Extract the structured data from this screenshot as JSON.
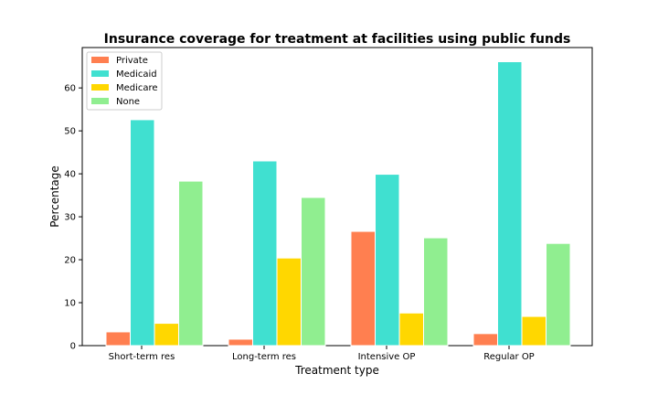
{
  "chart_data": {
    "type": "bar",
    "title": "Insurance coverage for treatment at facilities using public funds",
    "xlabel": "Treatment type",
    "ylabel": "Percentage",
    "categories": [
      "Short-term res",
      "Long-term res",
      "Intensive OP",
      "Regular OP"
    ],
    "series": [
      {
        "name": "Private",
        "color": "#ff7f50",
        "values": [
          3.2,
          1.5,
          26.6,
          2.8
        ]
      },
      {
        "name": "Medicaid",
        "color": "#40e0d0",
        "values": [
          52.6,
          43.0,
          39.9,
          66.1
        ]
      },
      {
        "name": "Medicare",
        "color": "#ffd700",
        "values": [
          5.2,
          20.4,
          7.6,
          6.8
        ]
      },
      {
        "name": "None",
        "color": "#90ee90",
        "values": [
          38.3,
          34.5,
          25.1,
          23.8
        ]
      }
    ],
    "ylim": [
      0,
      69.4
    ],
    "yticks": [
      0,
      10,
      20,
      30,
      40,
      50,
      60
    ],
    "grid": false,
    "legend": "upper-left"
  }
}
